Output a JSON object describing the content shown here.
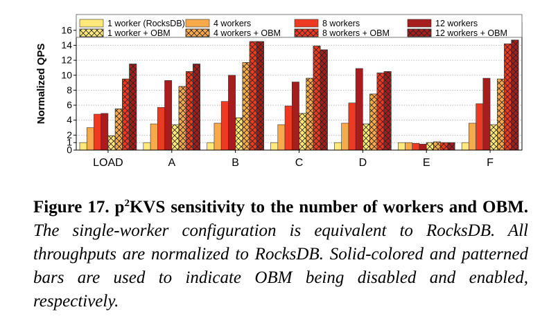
{
  "chart_data": {
    "type": "bar",
    "ylabel": "Normalized QPS",
    "ylim": [
      0,
      17
    ],
    "yticks": [
      0,
      1,
      2,
      4,
      6,
      8,
      10,
      12,
      14,
      16
    ],
    "grid": "horizontal dotted",
    "legend_position": "top",
    "categories": [
      "LOAD",
      "A",
      "B",
      "C",
      "D",
      "E",
      "F"
    ],
    "series": [
      {
        "name": "1 worker (RocksDB)",
        "obm": false,
        "color": "#FFE97A",
        "values": [
          1.0,
          1.0,
          1.0,
          1.0,
          1.0,
          1.0,
          1.0
        ]
      },
      {
        "name": "4 workers",
        "obm": false,
        "color": "#F8A94A",
        "values": [
          3.0,
          3.5,
          3.6,
          3.4,
          3.6,
          1.0,
          3.6
        ]
      },
      {
        "name": "8 workers",
        "obm": false,
        "color": "#EE3A22",
        "values": [
          4.8,
          5.7,
          6.5,
          5.9,
          6.3,
          0.9,
          6.2
        ]
      },
      {
        "name": "12 workers",
        "obm": false,
        "color": "#A71D1D",
        "values": [
          4.9,
          9.3,
          10.0,
          9.1,
          10.9,
          0.8,
          9.6
        ]
      },
      {
        "name": "1 worker + OBM",
        "obm": true,
        "color": "#FFE97A",
        "values": [
          1.9,
          3.4,
          4.3,
          4.9,
          3.5,
          1.0,
          3.4
        ]
      },
      {
        "name": "4 workers + OBM",
        "obm": true,
        "color": "#F8A94A",
        "values": [
          5.5,
          8.5,
          11.7,
          9.6,
          7.5,
          1.1,
          9.5
        ]
      },
      {
        "name": "8 workers + OBM",
        "obm": true,
        "color": "#EE3A22",
        "values": [
          9.5,
          10.5,
          14.5,
          13.9,
          10.3,
          1.0,
          14.2
        ]
      },
      {
        "name": "12 workers + OBM",
        "obm": true,
        "color": "#A71D1D",
        "values": [
          11.5,
          11.5,
          14.5,
          13.4,
          10.5,
          1.0,
          14.7
        ]
      }
    ]
  },
  "legend_order": [
    "1 worker (RocksDB)",
    "4 workers",
    "8 workers",
    "12 workers",
    "1 worker + OBM",
    "4 workers + OBM",
    "8 workers + OBM",
    "12 workers + OBM"
  ],
  "caption": {
    "label": "Figure 17.",
    "title_before_sup": "p",
    "title_sup": "2",
    "title_after_sup": "KVS sensitivity to the number of workers and OBM.",
    "body": "The single-worker configuration is equivalent to RocksDB. All throughputs are normalized to RocksDB. Solid-colored and patterned bars are used to indicate OBM being disabled and enabled, respectively."
  }
}
